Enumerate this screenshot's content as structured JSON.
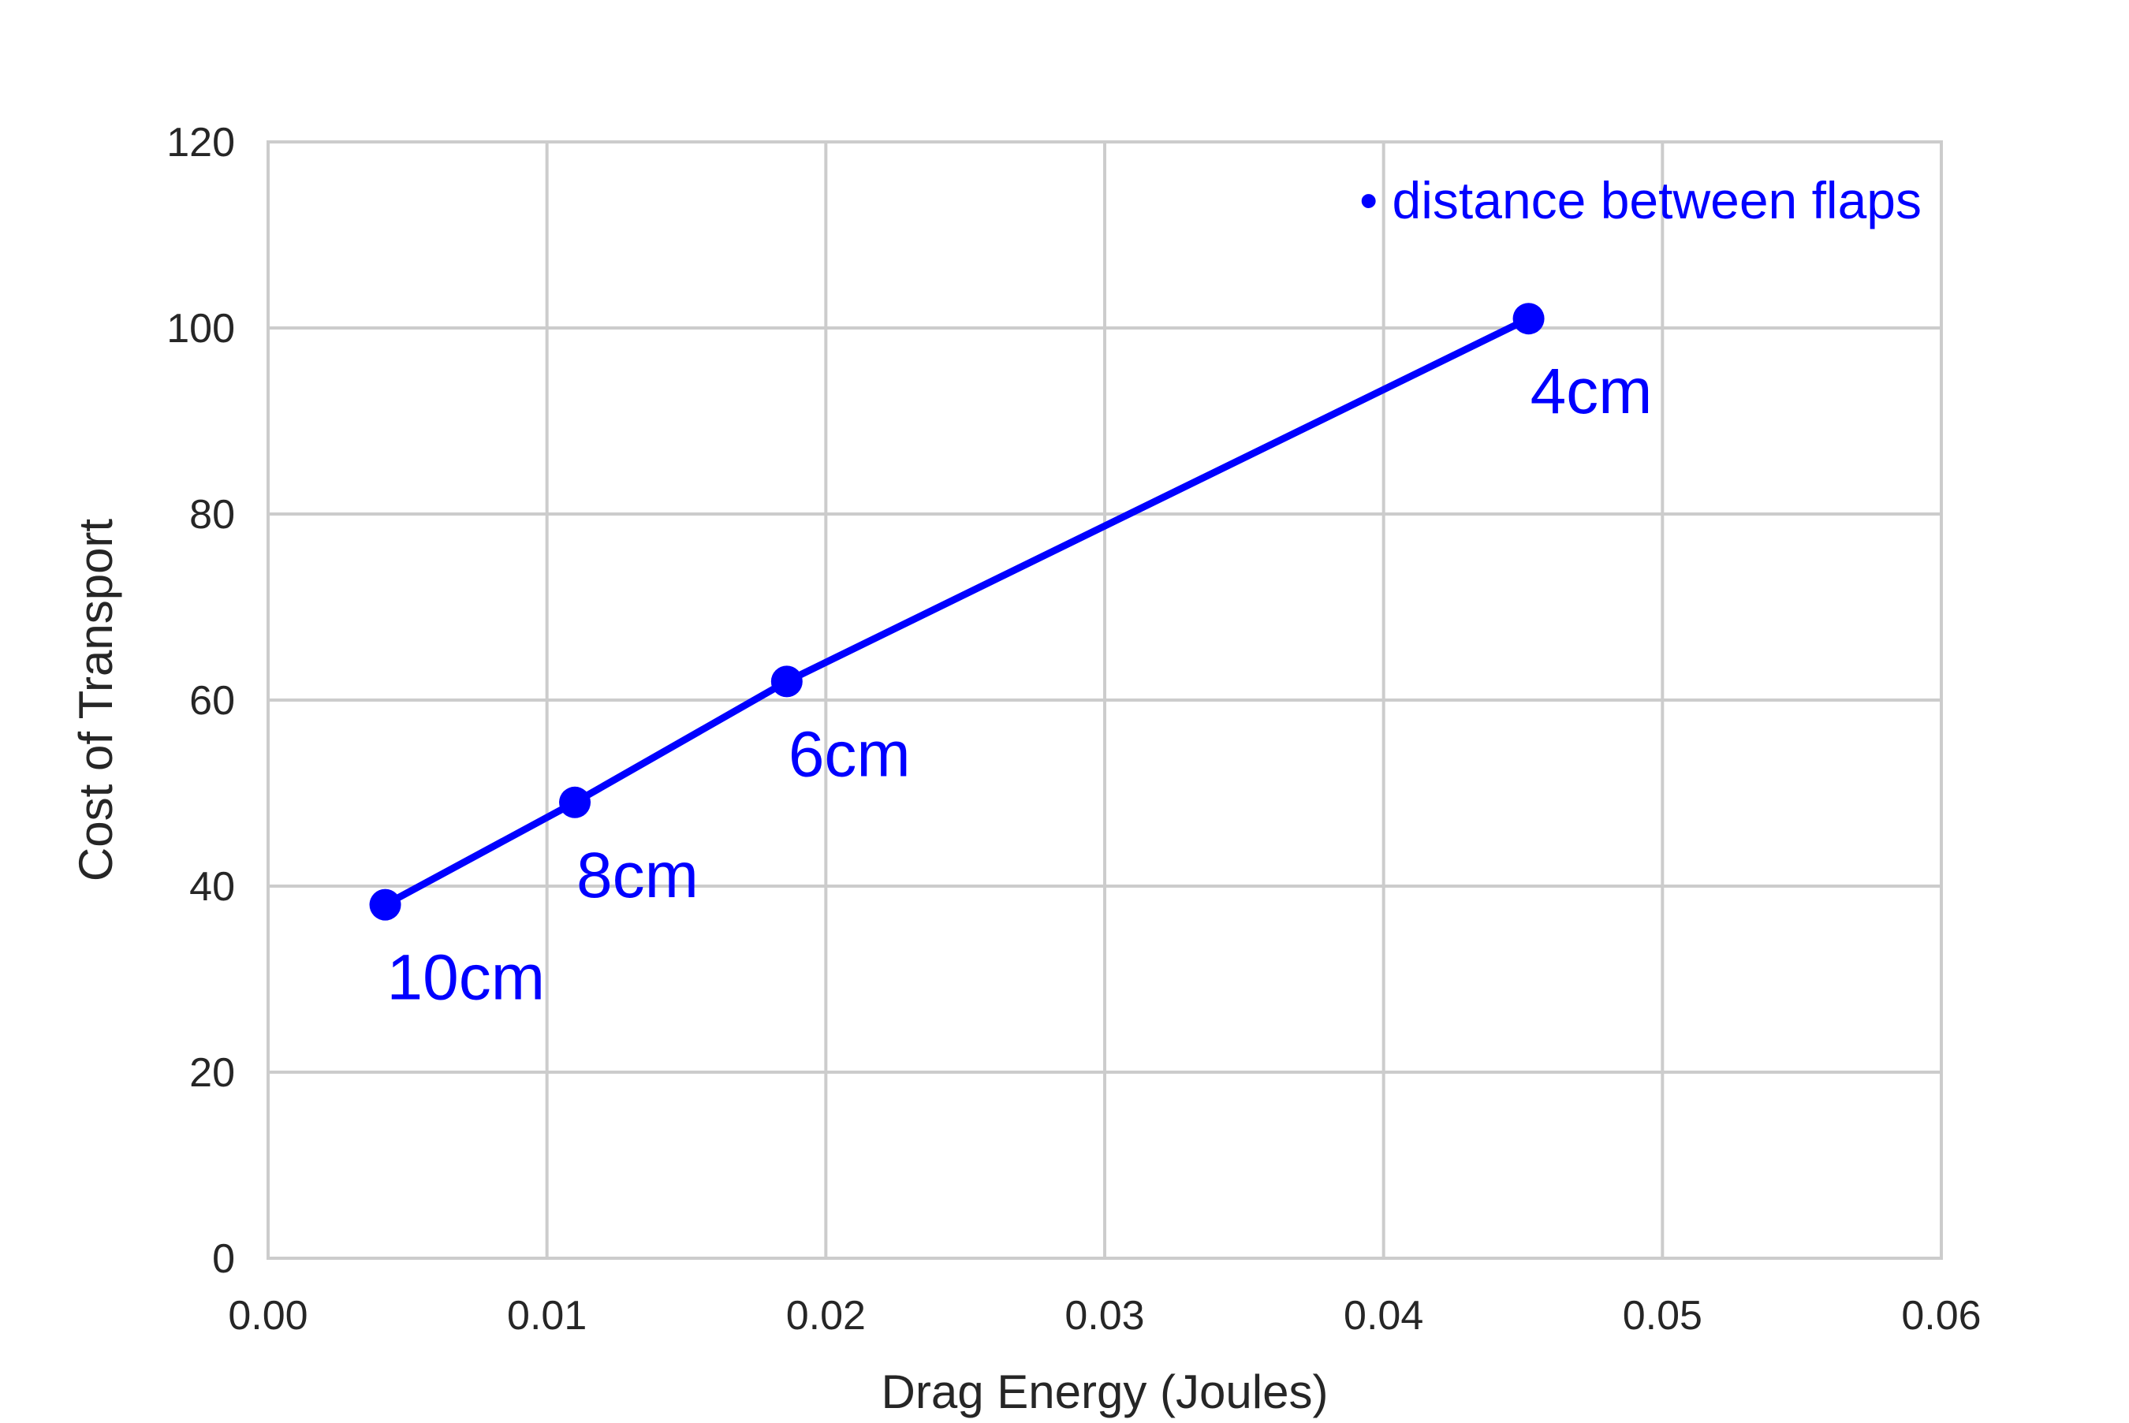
{
  "chart_data": {
    "type": "line",
    "title": "",
    "xlabel": "Drag Energy (Joules)",
    "ylabel": "Cost of Transport",
    "xlim": [
      0.0,
      0.06
    ],
    "ylim": [
      0,
      120
    ],
    "x_ticks": [
      0.0,
      0.01,
      0.02,
      0.03,
      0.04,
      0.05,
      0.06
    ],
    "x_tick_labels": [
      "0.00",
      "0.01",
      "0.02",
      "0.03",
      "0.04",
      "0.05",
      "0.06"
    ],
    "y_ticks": [
      0,
      20,
      40,
      60,
      80,
      100,
      120
    ],
    "y_tick_labels": [
      "0",
      "20",
      "40",
      "60",
      "80",
      "100",
      "120"
    ],
    "grid": true,
    "series": [
      {
        "color": "#0000ff",
        "marker": "circle",
        "points": [
          {
            "x": 0.0042,
            "y": 38,
            "label": "10cm"
          },
          {
            "x": 0.011,
            "y": 49,
            "label": "8cm"
          },
          {
            "x": 0.0186,
            "y": 62,
            "label": "6cm"
          },
          {
            "x": 0.0452,
            "y": 101,
            "label": "4cm"
          }
        ]
      }
    ],
    "annotation": {
      "text": "• distance between flaps",
      "position": "top-right",
      "color": "#0000ff"
    }
  }
}
